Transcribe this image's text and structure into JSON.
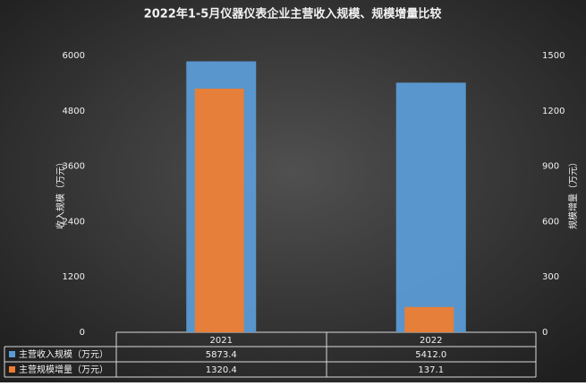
{
  "chart_data": {
    "type": "bar",
    "title": "2022年1-5月仪器仪表企业主营收入规模、规模增量比较",
    "categories": [
      "2021",
      "2022"
    ],
    "y_label": "收入规模（万元）",
    "y2_label": "规模增量（万元）",
    "ylim": [
      0,
      6000
    ],
    "yticks": [
      0,
      1200,
      2400,
      3600,
      4800,
      6000
    ],
    "y2lim": [
      0,
      1500
    ],
    "y2ticks": [
      0,
      300,
      600,
      900,
      1200,
      1500
    ],
    "grid": false,
    "series": [
      {
        "name": "主营收入规模（万元）",
        "color": "#5b9bd5",
        "values": [
          5873.4,
          5412.0
        ],
        "value_labels": [
          "5873.4",
          "5412.0"
        ]
      },
      {
        "name": "主营规模增量（万元）",
        "color": "#ed7d31",
        "axis": "y2",
        "values": [
          1320.4,
          137.1
        ],
        "value_labels": [
          "1320.4",
          "137.1"
        ]
      }
    ]
  }
}
